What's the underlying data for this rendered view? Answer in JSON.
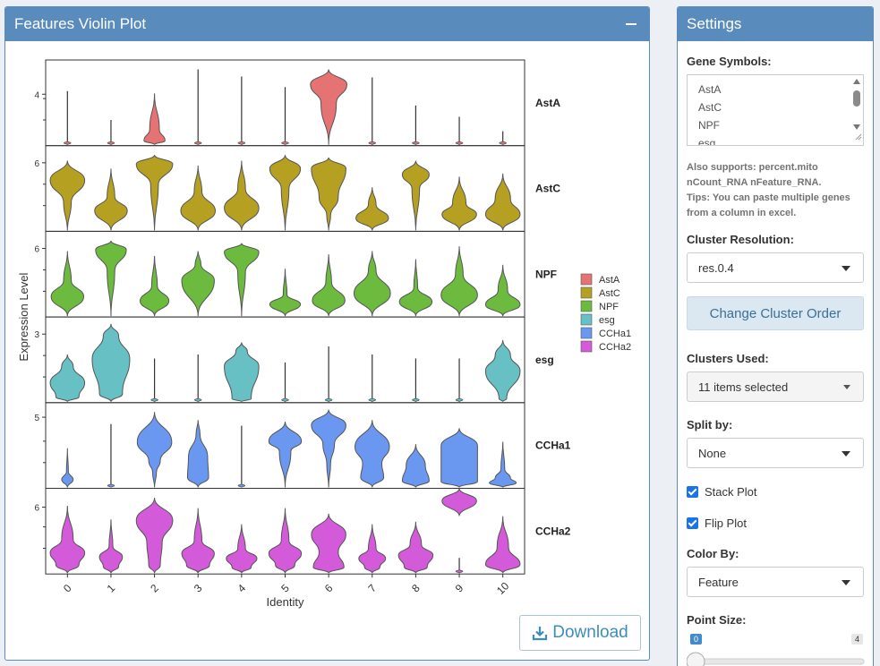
{
  "plot_panel": {
    "title": "Features Violin Plot",
    "download_label": "Download"
  },
  "settings": {
    "title": "Settings",
    "gene_symbols_label": "Gene Symbols:",
    "gene_list": [
      "AstA",
      "AstC",
      "NPF",
      "esg"
    ],
    "help_line1": "Also supports: percent.mito",
    "help_line2": "nCount_RNA nFeature_RNA.",
    "help_line3": "Tips: You can paste multiple genes",
    "help_line4": "from a column in excel.",
    "cluster_resolution_label": "Cluster Resolution:",
    "cluster_resolution_value": "res.0.4",
    "change_order_label": "Change Cluster Order",
    "clusters_used_label": "Clusters Used:",
    "clusters_used_value": "11 items selected",
    "split_by_label": "Split by:",
    "split_by_value": "None",
    "stack_plot_label": "Stack Plot",
    "flip_plot_label": "Flip Plot",
    "color_by_label": "Color By:",
    "color_by_value": "Feature",
    "point_size_label": "Point Size:",
    "point_size_min": "0",
    "point_size_max": "4",
    "point_size_value": 0
  },
  "chart_data": {
    "type": "violin",
    "xlabel": "Identity",
    "ylabel": "Expression Level",
    "categories": [
      "0",
      "1",
      "2",
      "3",
      "4",
      "5",
      "6",
      "7",
      "8",
      "9",
      "10"
    ],
    "features": [
      {
        "name": "AstA",
        "color": "#e57373",
        "tick": "4",
        "tick_pos": 0.6,
        "widths": [
          [
            [
              0.03,
              0.2
            ]
          ],
          [
            [
              0.02,
              0.2
            ]
          ],
          [
            [
              0.55,
              0.08
            ],
            [
              0.25,
              0.3
            ]
          ],
          [
            [
              0.02,
              0.2
            ]
          ],
          [
            [
              0.02,
              0.2
            ]
          ],
          [
            [
              0.02,
              0.2
            ]
          ],
          [
            [
              0.95,
              0.8
            ],
            [
              0.4,
              0.55
            ]
          ],
          [
            [
              0.02,
              0.2
            ]
          ],
          [
            [
              0.02,
              0.2
            ]
          ],
          [
            [
              0.02,
              0.2
            ]
          ],
          [
            [
              0.02,
              0.2
            ]
          ]
        ],
        "tops": [
          0.68,
          0.32,
          0.65,
          0.95,
          0.86,
          0.73,
          0.95,
          0.85,
          0.5,
          0.36,
          0.18
        ]
      },
      {
        "name": "AstC",
        "color": "#b5a022",
        "tick": "6",
        "tick_pos": 0.8,
        "widths": [
          [
            [
              0.9,
              0.72
            ],
            [
              0.2,
              0.4
            ]
          ],
          [
            [
              0.85,
              0.32
            ],
            [
              0.2,
              0.55
            ]
          ],
          [
            [
              0.95,
              0.88
            ],
            [
              0.2,
              0.6
            ]
          ],
          [
            [
              0.9,
              0.3
            ],
            [
              0.2,
              0.6
            ]
          ],
          [
            [
              0.9,
              0.32
            ],
            [
              0.2,
              0.6
            ]
          ],
          [
            [
              0.8,
              0.82
            ],
            [
              0.2,
              0.55
            ]
          ],
          [
            [
              0.9,
              0.85
            ],
            [
              0.5,
              0.45
            ],
            [
              0.1,
              0.2
            ]
          ],
          [
            [
              0.85,
              0.28
            ],
            [
              0.2,
              0.6
            ]
          ],
          [
            [
              0.7,
              0.8
            ],
            [
              0.2,
              0.6
            ]
          ],
          [
            [
              0.9,
              0.3
            ],
            [
              0.35,
              0.5
            ]
          ],
          [
            [
              0.9,
              0.28
            ],
            [
              0.4,
              0.55
            ]
          ]
        ],
        "tops": [
          0.88,
          0.78,
          0.95,
          0.82,
          0.88,
          0.95,
          0.92,
          0.55,
          0.88,
          0.68,
          0.72
        ]
      },
      {
        "name": "NPF",
        "color": "#6cba3e",
        "tick": "6",
        "tick_pos": 0.8,
        "widths": [
          [
            [
              0.85,
              0.3
            ],
            [
              0.2,
              0.55
            ]
          ],
          [
            [
              0.8,
              0.88
            ],
            [
              0.2,
              0.6
            ]
          ],
          [
            [
              0.75,
              0.25
            ],
            [
              0.15,
              0.5
            ]
          ],
          [
            [
              0.85,
              0.55
            ],
            [
              0.15,
              0.8
            ]
          ],
          [
            [
              0.9,
              0.88
            ],
            [
              0.2,
              0.6
            ]
          ],
          [
            [
              0.8,
              0.25
            ],
            [
              0.1,
              0.45
            ]
          ],
          [
            [
              0.85,
              0.25
            ],
            [
              0.15,
              0.55
            ]
          ],
          [
            [
              0.95,
              0.35
            ],
            [
              0.2,
              0.7
            ]
          ],
          [
            [
              0.85,
              0.25
            ],
            [
              0.1,
              0.5
            ]
          ],
          [
            [
              0.95,
              0.3
            ],
            [
              0.2,
              0.6
            ]
          ],
          [
            [
              0.9,
              0.22
            ],
            [
              0.25,
              0.5
            ]
          ]
        ],
        "tops": [
          0.82,
          0.95,
          0.76,
          0.82,
          0.92,
          0.6,
          0.78,
          0.82,
          0.72,
          0.88,
          0.65
        ]
      },
      {
        "name": "esg",
        "color": "#66c0c4",
        "tick": "3",
        "tick_pos": 0.8,
        "widths": [
          [
            [
              0.9,
              0.4
            ],
            [
              0.3,
              0.75
            ],
            [
              0.6,
              0.1
            ]
          ],
          [
            [
              0.98,
              0.55
            ],
            [
              0.4,
              0.85
            ],
            [
              0.6,
              0.1
            ]
          ],
          [
            [
              0.02,
              0.2
            ]
          ],
          [
            [
              0.02,
              0.2
            ]
          ],
          [
            [
              0.9,
              0.6
            ],
            [
              0.3,
              0.85
            ],
            [
              0.5,
              0.05
            ]
          ],
          [
            [
              0.02,
              0.2
            ]
          ],
          [
            [
              0.02,
              0.2
            ]
          ],
          [
            [
              0.02,
              0.2
            ]
          ],
          [
            [
              0.02,
              0.2
            ]
          ],
          [
            [
              0.02,
              0.2
            ]
          ],
          [
            [
              0.9,
              0.5
            ],
            [
              0.4,
              0.75
            ],
            [
              0.2,
              0.05
            ]
          ]
        ],
        "tops": [
          0.6,
          0.98,
          0.55,
          0.6,
          0.75,
          0.5,
          0.7,
          0.6,
          0.55,
          0.55,
          0.78
        ]
      },
      {
        "name": "CCHa1",
        "color": "#6a98f0",
        "tick": "5",
        "tick_pos": 0.83,
        "widths": [
          [
            [
              0.3,
              0.2
            ],
            [
              0.05,
              0.4
            ]
          ],
          [
            [
              0.02,
              0.2
            ]
          ],
          [
            [
              0.9,
              0.6
            ],
            [
              0.3,
              0.35
            ],
            [
              0.1,
              0.2
            ]
          ],
          [
            [
              0.5,
              0.45
            ],
            [
              0.55,
              0.15
            ],
            [
              0.1,
              0.8
            ]
          ],
          [
            [
              0.02,
              0.2
            ]
          ],
          [
            [
              0.85,
              0.7
            ],
            [
              0.3,
              0.55
            ]
          ],
          [
            [
              0.9,
              0.8
            ],
            [
              0.3,
              0.55
            ],
            [
              0.1,
              0.3
            ]
          ],
          [
            [
              0.9,
              0.6
            ],
            [
              0.5,
              0.35
            ],
            [
              0.6,
              0.15
            ]
          ],
          [
            [
              0.5,
              0.5
            ],
            [
              0.7,
              0.15
            ]
          ],
          [
            [
              0.95,
              0.7
            ],
            [
              0.95,
              0.1
            ]
          ],
          [
            [
              0.4,
              0.2
            ],
            [
              0.7,
              0.1
            ],
            [
              0.1,
              0.4
            ]
          ]
        ],
        "tops": [
          0.5,
          0.8,
          0.95,
          0.85,
          0.78,
          0.83,
          0.98,
          0.85,
          0.55,
          0.75,
          0.58
        ]
      },
      {
        "name": "CCHa2",
        "color": "#d35ad8",
        "tick": "6",
        "tick_pos": 0.78,
        "widths": [
          [
            [
              0.9,
              0.3
            ],
            [
              0.6,
              0.12
            ],
            [
              0.3,
              0.5
            ]
          ],
          [
            [
              0.6,
              0.3
            ],
            [
              0.4,
              0.12
            ],
            [
              0.1,
              0.5
            ]
          ],
          [
            [
              0.95,
              0.7
            ],
            [
              0.4,
              0.4
            ],
            [
              0.3,
              0.1
            ]
          ],
          [
            [
              0.85,
              0.3
            ],
            [
              0.6,
              0.12
            ],
            [
              0.2,
              0.5
            ]
          ],
          [
            [
              0.8,
              0.3
            ],
            [
              0.5,
              0.12
            ],
            [
              0.2,
              0.5
            ]
          ],
          [
            [
              0.85,
              0.3
            ],
            [
              0.5,
              0.12
            ],
            [
              0.2,
              0.5
            ]
          ],
          [
            [
              0.9,
              0.65
            ],
            [
              0.5,
              0.35
            ],
            [
              0.8,
              0.1
            ]
          ],
          [
            [
              0.7,
              0.3
            ],
            [
              0.4,
              0.12
            ],
            [
              0.2,
              0.5
            ]
          ],
          [
            [
              0.9,
              0.35
            ],
            [
              0.6,
              0.12
            ],
            [
              0.3,
              0.55
            ]
          ],
          [
            [
              0.02,
              0.2
            ]
          ],
          [
            [
              0.9,
              0.15
            ],
            [
              0.3,
              0.45
            ]
          ]
        ],
        "tops": [
          0.85,
          0.68,
          0.95,
          0.82,
          0.62,
          0.82,
          0.75,
          0.62,
          0.65,
          0.2,
          0.72
        ]
      }
    ],
    "extra_violin": {
      "feature": "CCHa2",
      "category": "9",
      "note": "overflows into top of CCHa2 row"
    }
  }
}
